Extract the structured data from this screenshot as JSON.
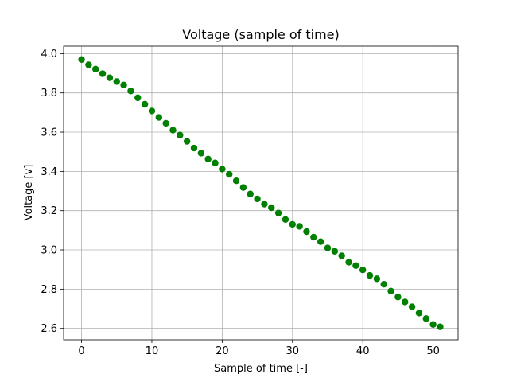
{
  "chart_data": {
    "type": "scatter",
    "title": "Voltage (sample of time)",
    "xlabel": "Sample of time [-]",
    "ylabel": "Voltage [v]",
    "xlim": [
      -2.55,
      53.55
    ],
    "ylim": [
      2.542,
      4.038
    ],
    "grid": true,
    "marker_color": "#008000",
    "x_ticks": [
      0,
      10,
      20,
      30,
      40,
      50
    ],
    "x_tick_labels": [
      "0",
      "10",
      "20",
      "30",
      "40",
      "50"
    ],
    "y_ticks": [
      2.6,
      2.8,
      3.0,
      3.2,
      3.4,
      3.6,
      3.8,
      4.0
    ],
    "y_tick_labels": [
      "2.6",
      "2.8",
      "3.0",
      "3.2",
      "3.4",
      "3.6",
      "3.8",
      "4.0"
    ],
    "series": [
      {
        "x": [
          0,
          1,
          2,
          3,
          4,
          5,
          6,
          7,
          8,
          9,
          10,
          11,
          12,
          13,
          14,
          15,
          16,
          17,
          18,
          19,
          20,
          21,
          22,
          23,
          24,
          25,
          26,
          27,
          28,
          29,
          30,
          31,
          32,
          33,
          34,
          35,
          36,
          37,
          38,
          39,
          40,
          41,
          42,
          43,
          44,
          45,
          46,
          47,
          48,
          49,
          50,
          51
        ],
        "y": [
          3.97,
          3.943,
          3.921,
          3.898,
          3.877,
          3.858,
          3.84,
          3.81,
          3.775,
          3.742,
          3.708,
          3.675,
          3.645,
          3.61,
          3.585,
          3.553,
          3.519,
          3.493,
          3.463,
          3.443,
          3.412,
          3.385,
          3.352,
          3.318,
          3.285,
          3.26,
          3.233,
          3.215,
          3.188,
          3.155,
          3.13,
          3.12,
          3.093,
          3.065,
          3.042,
          3.01,
          2.993,
          2.97,
          2.937,
          2.92,
          2.898,
          2.87,
          2.853,
          2.825,
          2.79,
          2.76,
          2.735,
          2.71,
          2.678,
          2.65,
          2.62,
          2.608
        ]
      }
    ]
  }
}
